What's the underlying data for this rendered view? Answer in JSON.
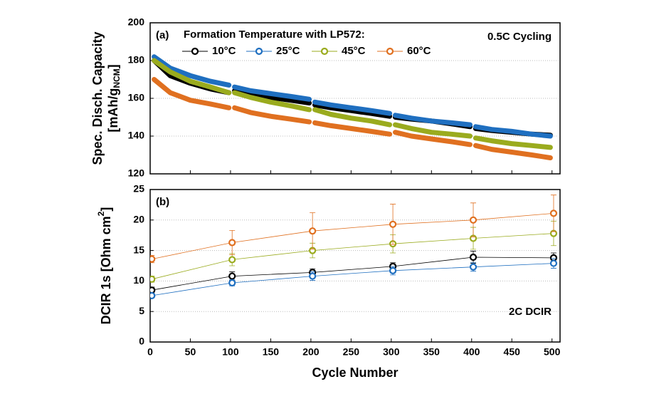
{
  "chart_data": [
    {
      "type": "line",
      "ylabel": "Spec. Disch. Capacity",
      "ylabel_unit": {
        "pre": "[mAh/g",
        "sub": "NCM",
        "post": "]"
      },
      "legend_title": "Formation Temperature with LP572:",
      "annotations": [
        "(a)",
        "0.5C Cycling"
      ],
      "xlim": [
        0,
        510
      ],
      "ylim": [
        120,
        200
      ],
      "yticks": [
        120,
        140,
        160,
        180,
        200
      ],
      "grid": true,
      "x": [
        5,
        25,
        50,
        75,
        98,
        102,
        105,
        125,
        150,
        175,
        198,
        202,
        205,
        225,
        250,
        275,
        298,
        302,
        305,
        325,
        350,
        375,
        398,
        402,
        405,
        425,
        450,
        475,
        498,
        502,
        508
      ],
      "series": [
        {
          "name": "10°C",
          "color": "#000000",
          "values": [
            180,
            172,
            168,
            165,
            163,
            null,
            164,
            162,
            160.5,
            159,
            157.5,
            null,
            156.5,
            155,
            153.5,
            152,
            150.5,
            null,
            150,
            149,
            148,
            146.5,
            145,
            null,
            144,
            143,
            142,
            141,
            140.5,
            null,
            137
          ]
        },
        {
          "name": "25°C",
          "color": "#1f6fc0",
          "values": [
            182,
            176,
            172,
            169,
            167,
            null,
            166,
            164,
            162.5,
            161,
            159.5,
            null,
            158,
            156.5,
            155,
            153.5,
            152,
            null,
            151,
            149.5,
            148,
            147,
            146,
            null,
            145,
            143.5,
            142.5,
            141,
            140,
            null,
            138
          ]
        },
        {
          "name": "45°C",
          "color": "#9aab1e",
          "values": [
            180,
            174,
            169,
            166,
            163,
            null,
            163,
            160.5,
            158,
            156,
            154,
            null,
            154,
            151.5,
            149.5,
            148,
            146,
            null,
            146,
            144,
            142,
            141,
            140,
            null,
            139,
            137.5,
            136,
            135,
            134,
            null,
            132
          ]
        },
        {
          "name": "60°C",
          "color": "#e07020",
          "values": [
            170,
            163,
            159,
            157,
            155,
            null,
            155,
            152.5,
            150.5,
            149,
            147.5,
            null,
            147,
            145.5,
            144,
            142.5,
            141,
            null,
            142,
            140,
            138.5,
            137,
            135.5,
            null,
            135,
            133,
            131.5,
            130,
            128.5,
            null,
            127
          ]
        }
      ]
    },
    {
      "type": "errorbar",
      "ylabel": {
        "pre": "DCIR 1s [Ohm cm",
        "sup": "2",
        "post": "]"
      },
      "xlabel": "Cycle Number",
      "annotations": [
        "(b)",
        "2C DCIR"
      ],
      "xlim": [
        0,
        510
      ],
      "xticks": [
        0,
        50,
        100,
        150,
        200,
        250,
        300,
        350,
        400,
        450,
        500
      ],
      "ylim": [
        0,
        25
      ],
      "yticks": [
        0,
        5,
        10,
        15,
        20,
        25
      ],
      "grid": true,
      "x": [
        2,
        102,
        202,
        302,
        402,
        502
      ],
      "series": [
        {
          "name": "10°C",
          "color": "#000000",
          "values": [
            8.5,
            10.8,
            11.4,
            12.4,
            13.9,
            13.8
          ],
          "errors": [
            0.5,
            0.7,
            0.6,
            0.6,
            1.0,
            0.8
          ]
        },
        {
          "name": "25°C",
          "color": "#1f6fc0",
          "values": [
            7.6,
            9.7,
            10.8,
            11.7,
            12.3,
            12.9
          ],
          "errors": [
            0.3,
            0.5,
            0.7,
            0.7,
            0.7,
            0.8
          ]
        },
        {
          "name": "45°C",
          "color": "#9aab1e",
          "values": [
            10.3,
            13.5,
            15.0,
            16.1,
            17.0,
            17.8
          ],
          "errors": [
            0.5,
            1.0,
            1.2,
            1.5,
            1.8,
            2.0
          ]
        },
        {
          "name": "60°C",
          "color": "#e07020",
          "values": [
            13.6,
            16.3,
            18.2,
            19.3,
            20.0,
            21.1
          ],
          "errors": [
            0.6,
            2.0,
            3.0,
            3.3,
            2.8,
            3.0
          ]
        }
      ]
    }
  ]
}
